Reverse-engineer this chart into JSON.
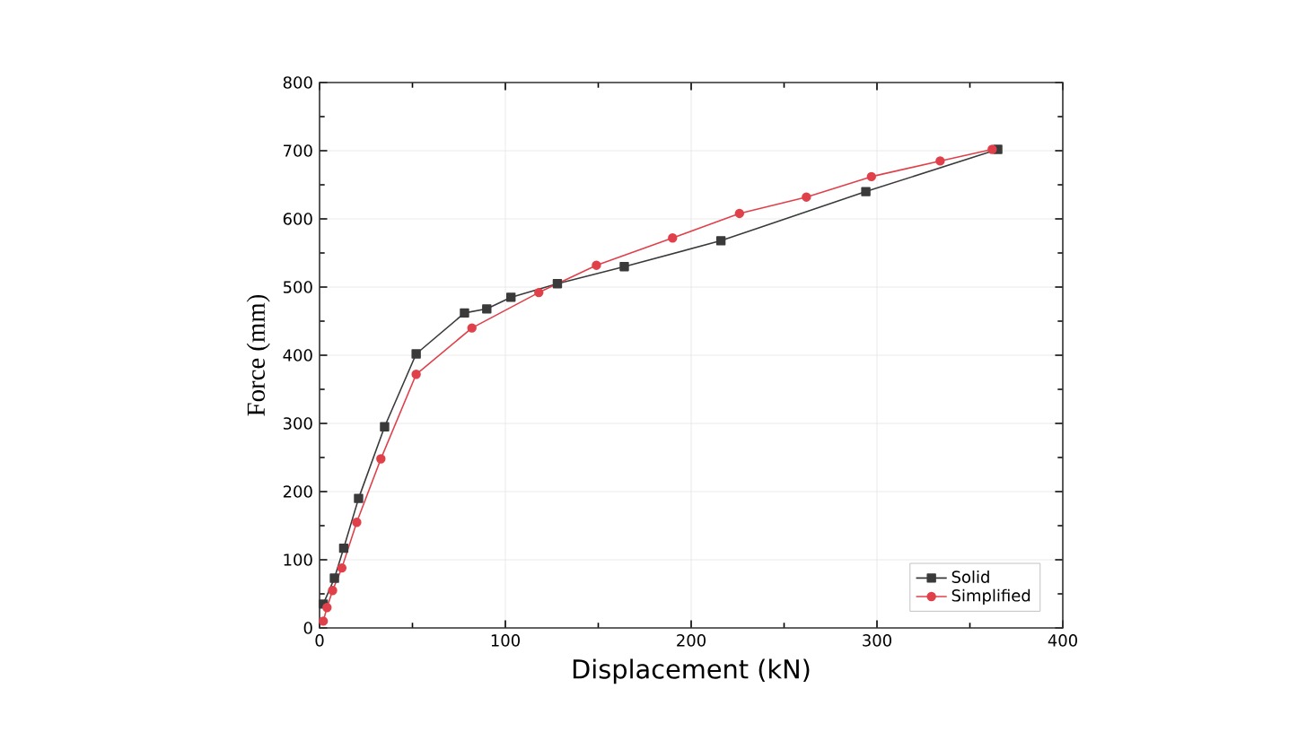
{
  "chart_data": {
    "type": "line",
    "xlabel": "Displacement (kN)",
    "ylabel": "Force (mm)",
    "xlim": [
      0,
      400
    ],
    "ylim": [
      0,
      800
    ],
    "xticks": [
      0,
      100,
      200,
      300,
      400
    ],
    "yticks": [
      0,
      100,
      200,
      300,
      400,
      500,
      600,
      700,
      800
    ],
    "grid": true,
    "legend": "bottom right",
    "line_style": "solid",
    "series": [
      {
        "name": "Solid",
        "color": "#3a3a3a",
        "marker": "square",
        "x": [
          2,
          8,
          13,
          21,
          35,
          52,
          78,
          90,
          103,
          128,
          164,
          216,
          294,
          365
        ],
        "values": [
          35,
          73,
          117,
          190,
          295,
          402,
          462,
          468,
          485,
          505,
          530,
          568,
          640,
          702
        ]
      },
      {
        "name": "Simplified",
        "color": "#e0404a",
        "marker": "circle",
        "x": [
          2,
          4,
          7,
          12,
          20,
          33,
          52,
          82,
          118,
          149,
          190,
          226,
          262,
          297,
          334,
          362
        ],
        "values": [
          10,
          30,
          55,
          88,
          155,
          248,
          372,
          440,
          492,
          532,
          572,
          608,
          632,
          662,
          685,
          702
        ]
      }
    ]
  }
}
